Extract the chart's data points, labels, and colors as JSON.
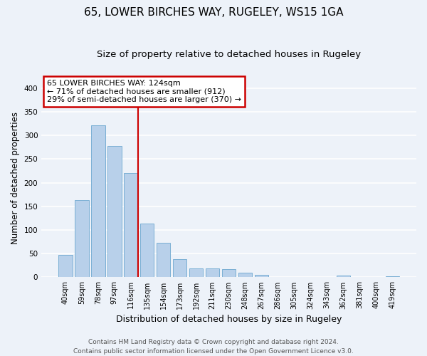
{
  "title": "65, LOWER BIRCHES WAY, RUGELEY, WS15 1GA",
  "subtitle": "Size of property relative to detached houses in Rugeley",
  "xlabel": "Distribution of detached houses by size in Rugeley",
  "ylabel": "Number of detached properties",
  "footer_line1": "Contains HM Land Registry data © Crown copyright and database right 2024.",
  "footer_line2": "Contains public sector information licensed under the Open Government Licence v3.0.",
  "bin_labels": [
    "40sqm",
    "59sqm",
    "78sqm",
    "97sqm",
    "116sqm",
    "135sqm",
    "154sqm",
    "173sqm",
    "192sqm",
    "211sqm",
    "230sqm",
    "248sqm",
    "267sqm",
    "286sqm",
    "305sqm",
    "324sqm",
    "343sqm",
    "362sqm",
    "381sqm",
    "400sqm",
    "419sqm"
  ],
  "bar_values": [
    47,
    163,
    322,
    278,
    221,
    114,
    73,
    39,
    18,
    18,
    17,
    10,
    5,
    0,
    0,
    0,
    0,
    3,
    0,
    0,
    2
  ],
  "bar_color": "#b8d0ea",
  "bar_edge_color": "#7aafd4",
  "annotation_box_text": "65 LOWER BIRCHES WAY: 124sqm\n← 71% of detached houses are smaller (912)\n29% of semi-detached houses are larger (370) →",
  "annotation_box_color": "#ffffff",
  "annotation_box_edge_color": "#cc0000",
  "vline_color": "#cc0000",
  "ylim": [
    0,
    420
  ],
  "yticks": [
    0,
    50,
    100,
    150,
    200,
    250,
    300,
    350,
    400
  ],
  "bg_color": "#edf2f9",
  "grid_color": "#ffffff",
  "title_fontsize": 11,
  "subtitle_fontsize": 9.5,
  "ylabel_fontsize": 8.5,
  "xlabel_fontsize": 9,
  "tick_fontsize": 7.5,
  "footer_fontsize": 6.5,
  "annot_fontsize": 8
}
